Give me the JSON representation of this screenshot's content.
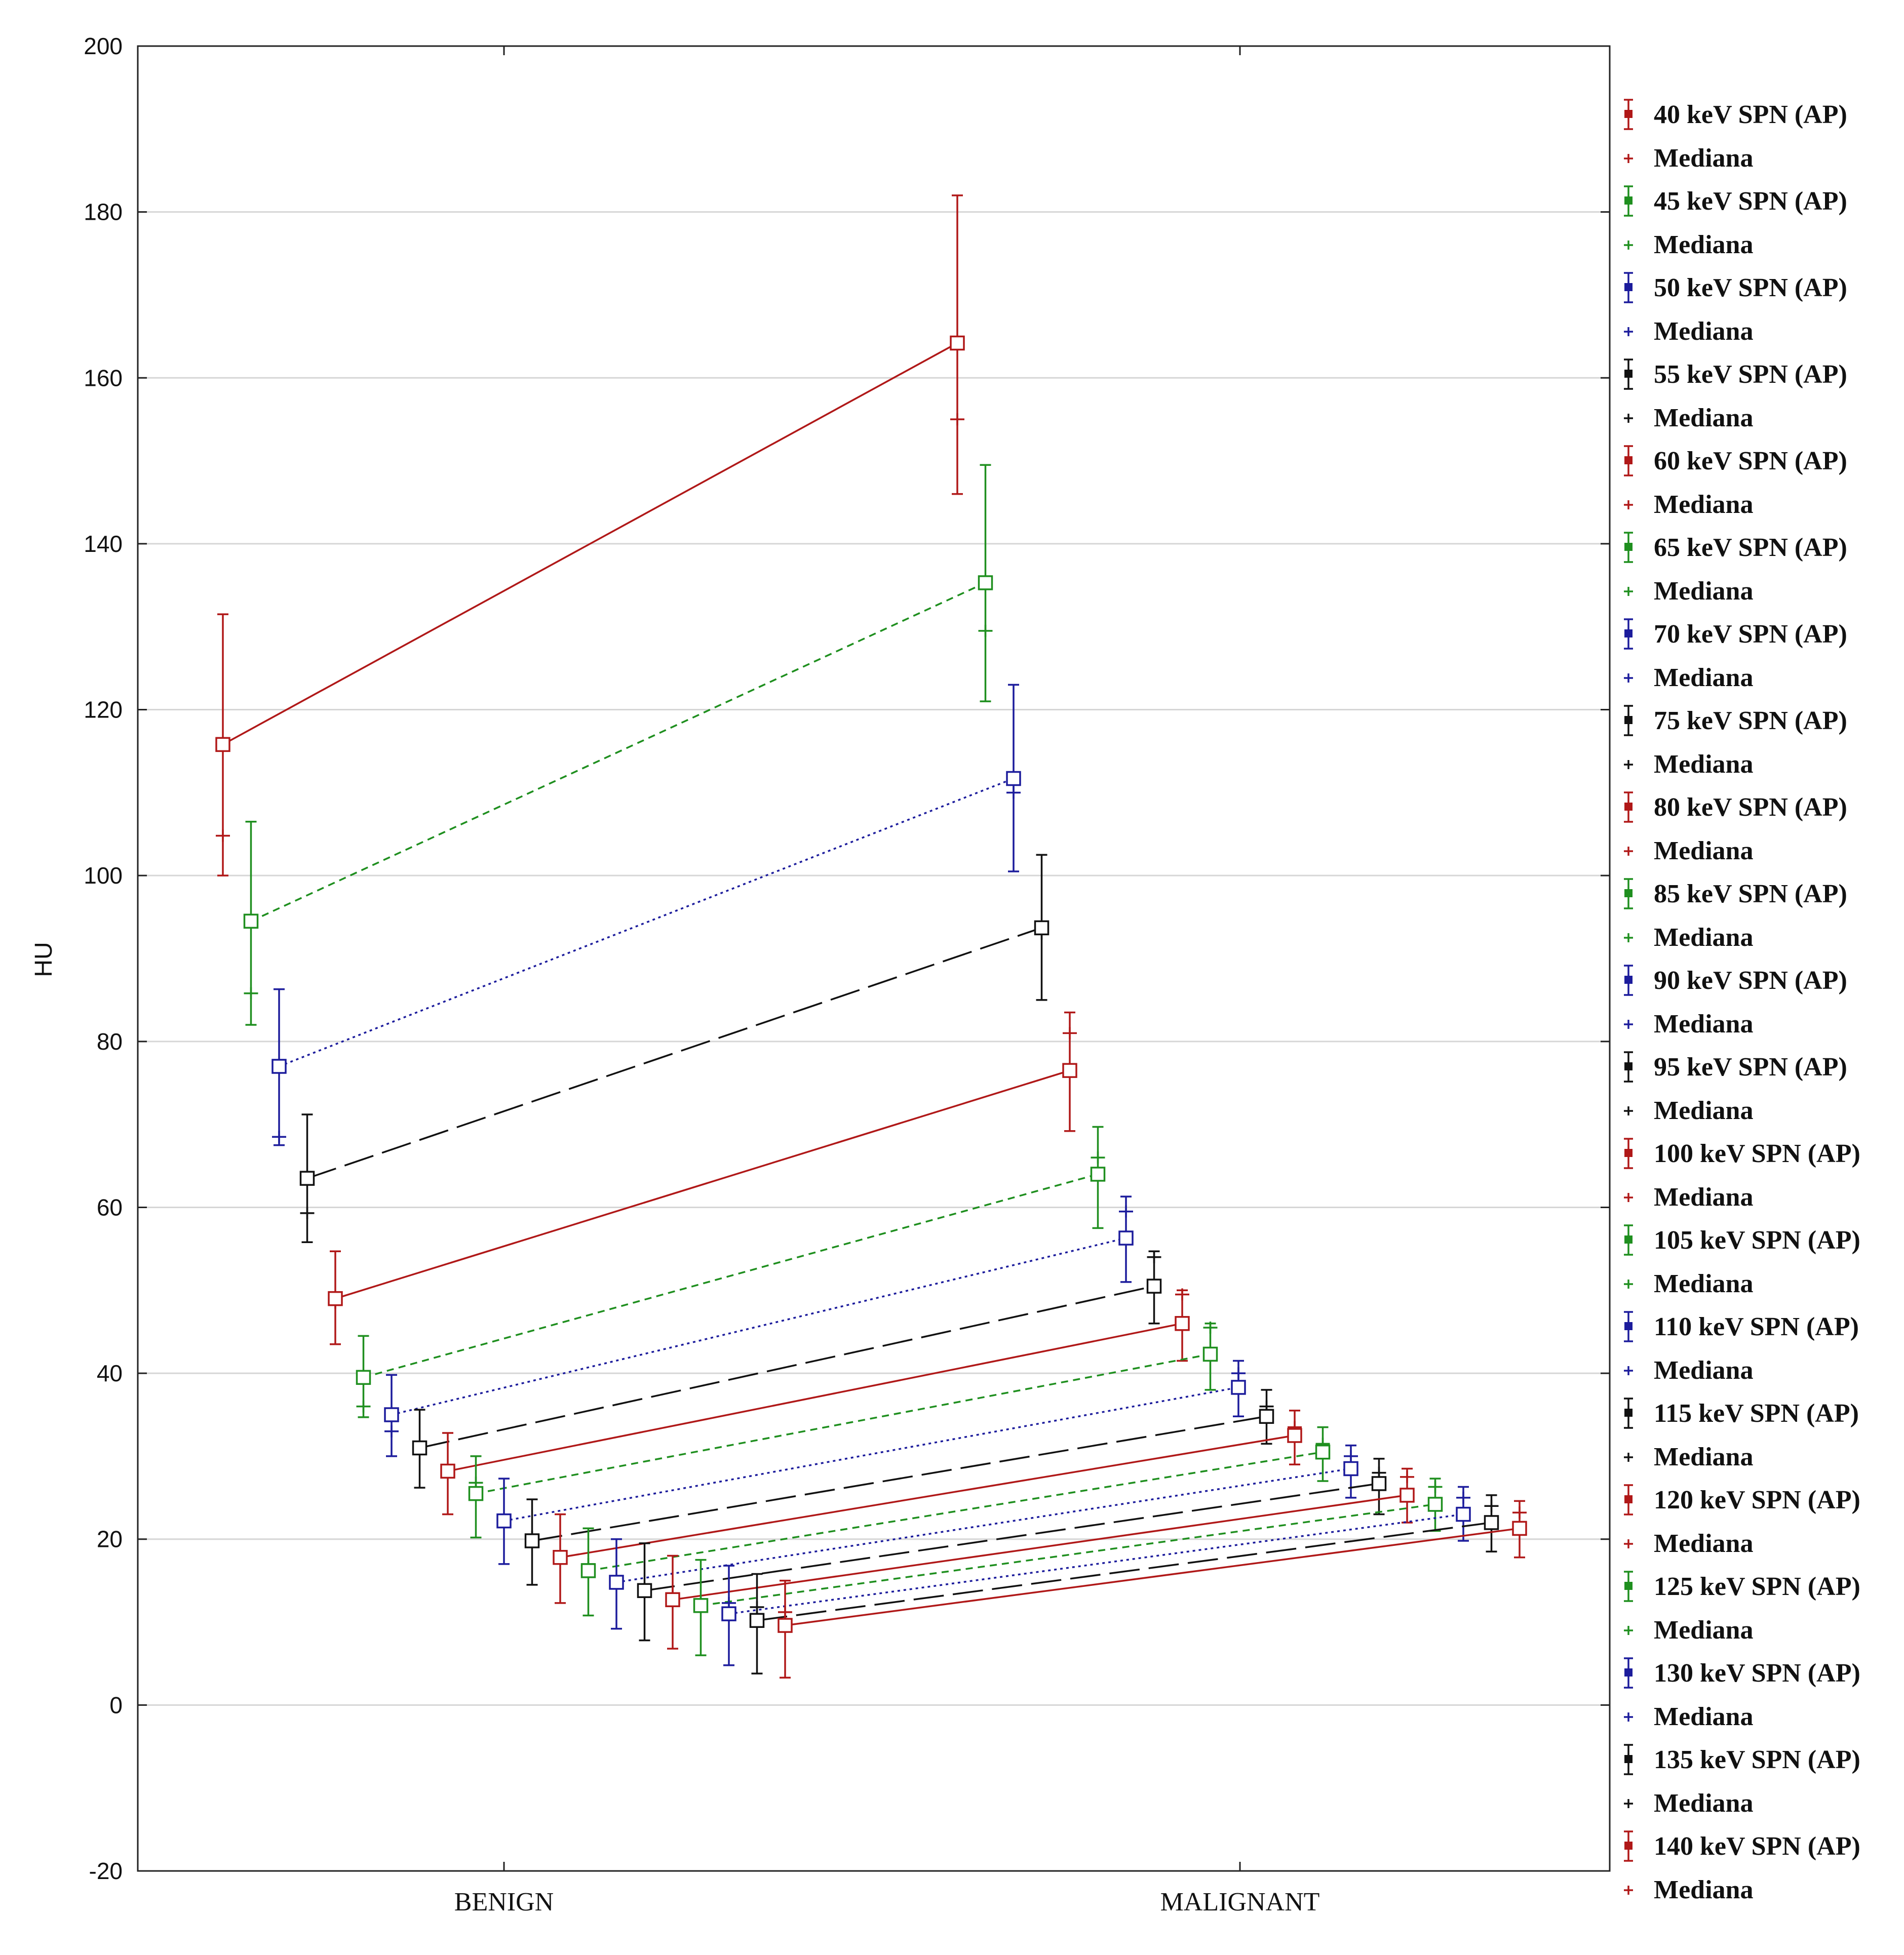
{
  "chart_data": {
    "type": "line",
    "title": "",
    "xlabel": "",
    "ylabel": "HU",
    "ylim": [
      -20,
      200
    ],
    "yticks": [
      -20,
      0,
      20,
      40,
      60,
      80,
      100,
      120,
      140,
      160,
      180,
      200
    ],
    "categories": [
      "BENIGN",
      "MALIGNANT"
    ],
    "grid": true,
    "legend_position": "right",
    "median_label": "Mediana",
    "series": [
      {
        "name": "40 keV SPN (AP)",
        "color": "#b01818",
        "dash": "solid",
        "mean": [
          115.8,
          164.2
        ],
        "lower": [
          100.0,
          146.0
        ],
        "upper": [
          131.5,
          182.0
        ],
        "median": [
          104.8,
          155.0
        ]
      },
      {
        "name": "45 keV SPN (AP)",
        "color": "#1f8f1f",
        "dash": "short",
        "mean": [
          94.5,
          135.3
        ],
        "lower": [
          82.0,
          121.0
        ],
        "upper": [
          106.5,
          149.5
        ],
        "median": [
          85.8,
          129.5
        ]
      },
      {
        "name": "50 keV SPN (AP)",
        "color": "#1c1c9c",
        "dash": "dot",
        "mean": [
          77.0,
          111.7
        ],
        "lower": [
          67.5,
          100.5
        ],
        "upper": [
          86.3,
          123.0
        ],
        "median": [
          68.5,
          110.0
        ]
      },
      {
        "name": "55 keV SPN (AP)",
        "color": "#111111",
        "dash": "long",
        "mean": [
          63.5,
          93.7
        ],
        "lower": [
          55.8,
          85.0
        ],
        "upper": [
          71.2,
          102.5
        ],
        "median": [
          59.3,
          93.0
        ]
      },
      {
        "name": "60 keV SPN (AP)",
        "color": "#b01818",
        "dash": "solid",
        "mean": [
          49.0,
          76.5
        ],
        "lower": [
          43.5,
          69.2
        ],
        "upper": [
          54.7,
          83.5
        ],
        "median": [
          48.5,
          81.0
        ]
      },
      {
        "name": "65 keV SPN (AP)",
        "color": "#1f8f1f",
        "dash": "short",
        "mean": [
          39.5,
          64.0
        ],
        "lower": [
          34.7,
          57.5
        ],
        "upper": [
          44.5,
          69.7
        ],
        "median": [
          36.0,
          66.0
        ]
      },
      {
        "name": "70 keV SPN (AP)",
        "color": "#1c1c9c",
        "dash": "dot",
        "mean": [
          35.0,
          56.3
        ],
        "lower": [
          30.0,
          51.0
        ],
        "upper": [
          39.8,
          61.3
        ],
        "median": [
          33.0,
          59.5
        ]
      },
      {
        "name": "75 keV SPN (AP)",
        "color": "#111111",
        "dash": "long",
        "mean": [
          31.0,
          50.5
        ],
        "lower": [
          26.2,
          46.0
        ],
        "upper": [
          35.6,
          54.7
        ],
        "median": [
          31.0,
          54.0
        ]
      },
      {
        "name": "80 keV SPN (AP)",
        "color": "#b01818",
        "dash": "solid",
        "mean": [
          28.2,
          46.0
        ],
        "lower": [
          23.0,
          41.5
        ],
        "upper": [
          32.8,
          50.0
        ],
        "median": [
          28.2,
          49.5
        ]
      },
      {
        "name": "85 keV SPN (AP)",
        "color": "#1f8f1f",
        "dash": "short",
        "mean": [
          25.5,
          42.3
        ],
        "lower": [
          20.2,
          38.0
        ],
        "upper": [
          30.0,
          46.0
        ],
        "median": [
          26.8,
          45.5
        ]
      },
      {
        "name": "90 keV SPN (AP)",
        "color": "#1c1c9c",
        "dash": "dot",
        "mean": [
          22.2,
          38.3
        ],
        "lower": [
          17.0,
          34.8
        ],
        "upper": [
          27.3,
          41.5
        ],
        "median": [
          22.2,
          40.0
        ]
      },
      {
        "name": "95 keV SPN (AP)",
        "color": "#111111",
        "dash": "long",
        "mean": [
          19.8,
          34.8
        ],
        "lower": [
          14.5,
          31.5
        ],
        "upper": [
          24.8,
          38.0
        ],
        "median": [
          20.3,
          36.0
        ]
      },
      {
        "name": "100 keV SPN (AP)",
        "color": "#b01818",
        "dash": "solid",
        "mean": [
          17.8,
          32.5
        ],
        "lower": [
          12.3,
          29.0
        ],
        "upper": [
          23.0,
          35.5
        ],
        "median": [
          17.8,
          33.5
        ]
      },
      {
        "name": "105 keV SPN (AP)",
        "color": "#1f8f1f",
        "dash": "short",
        "mean": [
          16.2,
          30.5
        ],
        "lower": [
          10.8,
          27.0
        ],
        "upper": [
          21.3,
          33.5
        ],
        "median": [
          17.0,
          31.5
        ]
      },
      {
        "name": "110 keV SPN (AP)",
        "color": "#1c1c9c",
        "dash": "dot",
        "mean": [
          14.8,
          28.5
        ],
        "lower": [
          9.2,
          25.0
        ],
        "upper": [
          20.0,
          31.3
        ],
        "median": [
          15.0,
          30.0
        ]
      },
      {
        "name": "115 keV SPN (AP)",
        "color": "#111111",
        "dash": "long",
        "mean": [
          13.8,
          26.7
        ],
        "lower": [
          7.8,
          23.0
        ],
        "upper": [
          19.5,
          29.7
        ],
        "median": [
          14.0,
          28.0
        ]
      },
      {
        "name": "120 keV SPN (AP)",
        "color": "#b01818",
        "dash": "solid",
        "mean": [
          12.7,
          25.3
        ],
        "lower": [
          6.8,
          22.0
        ],
        "upper": [
          18.0,
          28.5
        ],
        "median": [
          13.5,
          27.5
        ]
      },
      {
        "name": "125 keV SPN (AP)",
        "color": "#1f8f1f",
        "dash": "short",
        "mean": [
          12.0,
          24.2
        ],
        "lower": [
          6.0,
          21.0
        ],
        "upper": [
          17.5,
          27.3
        ],
        "median": [
          12.5,
          26.3
        ]
      },
      {
        "name": "130 keV SPN (AP)",
        "color": "#1c1c9c",
        "dash": "dot",
        "mean": [
          11.0,
          23.0
        ],
        "lower": [
          4.8,
          19.8
        ],
        "upper": [
          16.8,
          26.3
        ],
        "median": [
          12.3,
          25.0
        ]
      },
      {
        "name": "135 keV SPN (AP)",
        "color": "#111111",
        "dash": "long",
        "mean": [
          10.2,
          22.0
        ],
        "lower": [
          3.8,
          18.5
        ],
        "upper": [
          15.8,
          25.3
        ],
        "median": [
          11.8,
          24.0
        ]
      },
      {
        "name": "140 keV SPN (AP)",
        "color": "#b01818",
        "dash": "solid",
        "mean": [
          9.6,
          21.3
        ],
        "lower": [
          3.3,
          17.8
        ],
        "upper": [
          15.0,
          24.6
        ],
        "median": [
          11.2,
          23.2
        ]
      }
    ]
  }
}
